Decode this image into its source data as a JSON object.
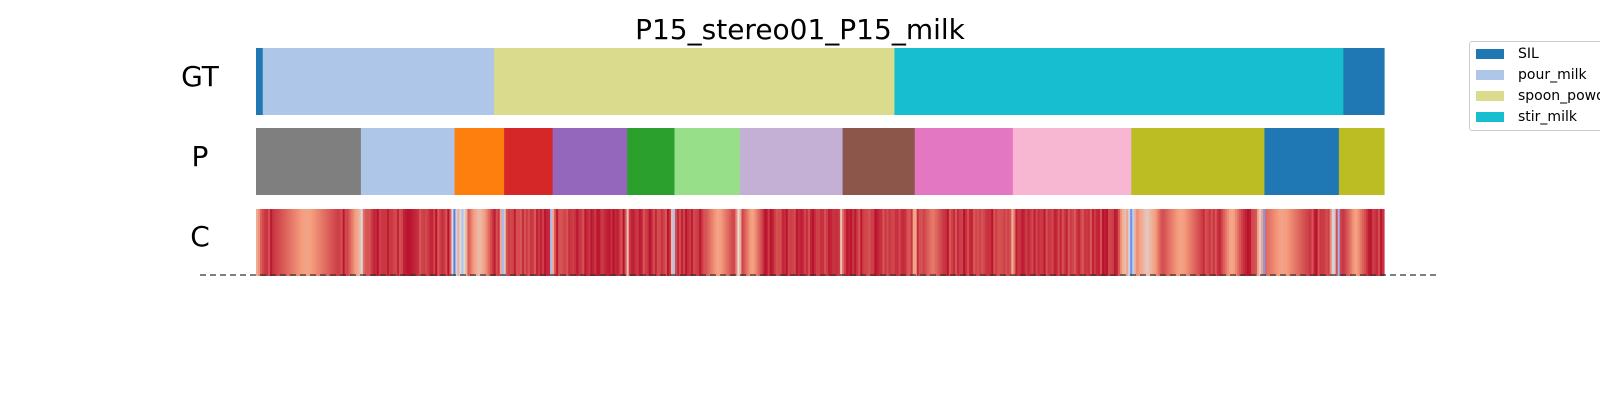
{
  "chart_data": {
    "type": "segmentation-timeline",
    "title": "P15_stereo01_P15_milk",
    "rows": [
      {
        "label": "GT",
        "kind": "segments",
        "segments": [
          {
            "label": "SIL",
            "start": 0.0,
            "end": 0.006,
            "color": "#1f77b4"
          },
          {
            "label": "pour_milk",
            "start": 0.006,
            "end": 0.211,
            "color": "#aec7e8"
          },
          {
            "label": "spoon_powder",
            "start": 0.211,
            "end": 0.566,
            "color": "#dbdb8d"
          },
          {
            "label": "stir_milk",
            "start": 0.566,
            "end": 0.964,
            "color": "#17becf"
          },
          {
            "label": "SIL",
            "start": 0.964,
            "end": 1.0,
            "color": "#1f77b4"
          }
        ]
      },
      {
        "label": "P",
        "kind": "segments",
        "segments": [
          {
            "start": 0.0,
            "end": 0.093,
            "color": "#7f7f7f"
          },
          {
            "start": 0.093,
            "end": 0.176,
            "color": "#aec7e8"
          },
          {
            "start": 0.176,
            "end": 0.22,
            "color": "#ff7f0e"
          },
          {
            "start": 0.22,
            "end": 0.263,
            "color": "#d62728"
          },
          {
            "start": 0.263,
            "end": 0.329,
            "color": "#9467bd"
          },
          {
            "start": 0.329,
            "end": 0.371,
            "color": "#2ca02c"
          },
          {
            "start": 0.371,
            "end": 0.429,
            "color": "#98df8a"
          },
          {
            "start": 0.429,
            "end": 0.52,
            "color": "#c5b0d5"
          },
          {
            "start": 0.52,
            "end": 0.584,
            "color": "#8c564b"
          },
          {
            "start": 0.584,
            "end": 0.671,
            "color": "#e377c2"
          },
          {
            "start": 0.671,
            "end": 0.776,
            "color": "#f7b6d2"
          },
          {
            "start": 0.776,
            "end": 0.894,
            "color": "#bcbd22"
          },
          {
            "start": 0.894,
            "end": 0.96,
            "color": "#1f77b4"
          },
          {
            "start": 0.96,
            "end": 1.0,
            "color": "#bcbd22"
          }
        ]
      },
      {
        "label": "C",
        "kind": "confidence",
        "colormap": "coolwarm",
        "range": [
          0,
          1
        ],
        "base_confidence": 0.92,
        "dips": [
          {
            "pos": 0.0,
            "width": 0.006,
            "value": 0.65
          },
          {
            "pos": 0.045,
            "width": 0.03,
            "value": 0.72
          },
          {
            "pos": 0.09,
            "width": 0.01,
            "value": 0.7
          },
          {
            "pos": 0.093,
            "width": 0.0015,
            "value": 0.05
          },
          {
            "pos": 0.176,
            "width": 0.004,
            "value": 0.1
          },
          {
            "pos": 0.183,
            "width": 0.006,
            "value": 0.35
          },
          {
            "pos": 0.198,
            "width": 0.012,
            "value": 0.62
          },
          {
            "pos": 0.219,
            "width": 0.003,
            "value": 0.25
          },
          {
            "pos": 0.262,
            "width": 0.002,
            "value": 0.2
          },
          {
            "pos": 0.329,
            "width": 0.0015,
            "value": 0.45
          },
          {
            "pos": 0.37,
            "width": 0.002,
            "value": 0.15
          },
          {
            "pos": 0.41,
            "width": 0.015,
            "value": 0.72
          },
          {
            "pos": 0.428,
            "width": 0.003,
            "value": 0.45
          },
          {
            "pos": 0.44,
            "width": 0.01,
            "value": 0.72
          },
          {
            "pos": 0.519,
            "width": 0.002,
            "value": 0.55
          },
          {
            "pos": 0.584,
            "width": 0.002,
            "value": 0.55
          },
          {
            "pos": 0.6,
            "width": 0.01,
            "value": 0.8
          },
          {
            "pos": 0.671,
            "width": 0.002,
            "value": 0.6
          },
          {
            "pos": 0.77,
            "width": 0.006,
            "value": 0.6
          },
          {
            "pos": 0.776,
            "width": 0.005,
            "value": 0.15
          },
          {
            "pos": 0.79,
            "width": 0.015,
            "value": 0.58
          },
          {
            "pos": 0.82,
            "width": 0.02,
            "value": 0.72
          },
          {
            "pos": 0.865,
            "width": 0.01,
            "value": 0.7
          },
          {
            "pos": 0.89,
            "width": 0.004,
            "value": 0.55
          },
          {
            "pos": 0.894,
            "width": 0.0015,
            "value": 0.05
          },
          {
            "pos": 0.91,
            "width": 0.025,
            "value": 0.72
          },
          {
            "pos": 0.955,
            "width": 0.003,
            "value": 0.35
          },
          {
            "pos": 0.96,
            "width": 0.0015,
            "value": 0.2
          },
          {
            "pos": 0.975,
            "width": 0.01,
            "value": 0.72
          }
        ]
      }
    ],
    "legend": {
      "placement": "top-right",
      "entries": [
        {
          "label": "SIL",
          "color": "#1f77b4"
        },
        {
          "label": "pour_milk",
          "color": "#aec7e8"
        },
        {
          "label": "spoon_powder",
          "color": "#dbdb8d"
        },
        {
          "label": "stir_milk",
          "color": "#17becf"
        }
      ]
    },
    "baseline": {
      "style": "dashed",
      "color": "#333333"
    }
  }
}
